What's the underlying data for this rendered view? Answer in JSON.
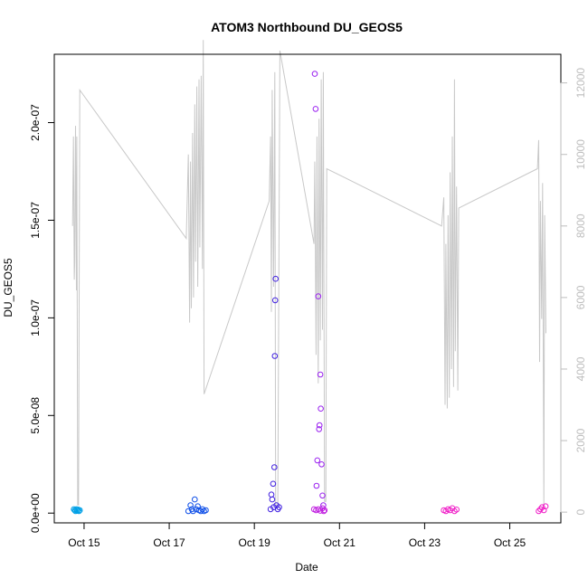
{
  "chart_data": {
    "type": "scatter",
    "title": "ATOM3 Northbound DU_GEOS5",
    "xlabel": "Date",
    "ylabel": "DU_GEOS5",
    "x_ticks": [
      "Oct 15",
      "Oct 17",
      "Oct 19",
      "Oct 21",
      "Oct 23",
      "Oct 25"
    ],
    "x_tick_days": [
      15,
      17,
      19,
      21,
      23,
      25
    ],
    "xlim": [
      14.3,
      26.2
    ],
    "ylim": [
      -5e-09,
      2.35e-07
    ],
    "y_ticks": [
      "0.0e+00",
      "5.0e-08",
      "1.0e-07",
      "1.5e-07",
      "2.0e-07"
    ],
    "y_tick_values": [
      0,
      5e-08,
      1e-07,
      1.5e-07,
      2e-07
    ],
    "y2_ylim": [
      -300,
      12800
    ],
    "y2_ticks": [
      "0",
      "2000",
      "4000",
      "6000",
      "8000",
      "10000",
      "12000"
    ],
    "y2_tick_values": [
      0,
      2000,
      4000,
      6000,
      8000,
      10000,
      12000
    ],
    "colors": {
      "altitude_line": "#c8c8c8",
      "flight1": "#00a0e6",
      "flight2": "#1050e8",
      "flight3": "#4020e0",
      "flight4": "#9a20f0",
      "flight5": "#c020e0",
      "flight6": "#f020c8"
    },
    "series": [
      {
        "color_key": "flight1",
        "x": [
          14.76,
          14.78,
          14.8,
          14.82,
          14.84,
          14.86,
          14.88,
          14.9
        ],
        "y": [
          2e-09,
          1.5e-09,
          1e-09,
          2e-09,
          1.2e-09,
          1.8e-09,
          1e-09,
          1.5e-09
        ]
      },
      {
        "color_key": "flight2",
        "x": [
          17.45,
          17.5,
          17.53,
          17.56,
          17.6,
          17.63,
          17.67,
          17.7,
          17.74,
          17.78,
          17.82,
          17.86
        ],
        "y": [
          1e-09,
          4e-09,
          2e-09,
          1e-09,
          7e-09,
          2e-09,
          3.5e-09,
          1.5e-09,
          1e-09,
          2e-09,
          1e-09,
          1.5e-09
        ]
      },
      {
        "color_key": "flight3",
        "x": [
          19.38,
          19.4,
          19.42,
          19.44,
          19.45,
          19.47,
          19.48,
          19.49,
          19.5,
          19.52,
          19.55,
          19.58
        ],
        "y": [
          2e-09,
          9.5e-09,
          7e-09,
          1.5e-08,
          3e-09,
          2.35e-08,
          8.05e-08,
          1.09e-07,
          1.2e-07,
          4e-09,
          2e-09,
          3e-09
        ]
      },
      {
        "color_key": "flight4",
        "x": [
          20.42,
          20.44,
          20.46,
          20.48,
          20.5,
          20.52,
          20.53,
          20.55,
          20.56,
          20.58,
          20.6,
          20.62
        ],
        "y": [
          2.25e-07,
          2.07e-07,
          1.4e-08,
          2.7e-08,
          1.11e-07,
          4.3e-08,
          4.5e-08,
          7.1e-08,
          5.35e-08,
          2.5e-08,
          9e-09,
          4e-09
        ]
      },
      {
        "color_key": "flight5",
        "x": [
          20.4,
          20.45,
          20.5,
          20.55,
          20.6,
          20.63,
          20.65
        ],
        "y": [
          2e-09,
          1.5e-09,
          2e-09,
          1.2e-09,
          2.5e-09,
          1e-09,
          1.5e-09
        ]
      },
      {
        "color_key": "flight6",
        "x": [
          23.45,
          23.5,
          23.55,
          23.6,
          23.65,
          23.7,
          23.75,
          25.68,
          25.72,
          25.76,
          25.8,
          25.84
        ],
        "y": [
          1.5e-09,
          1e-09,
          2e-09,
          1.5e-09,
          2.5e-09,
          1e-09,
          1.8e-09,
          1e-09,
          2e-09,
          3e-09,
          1.5e-09,
          3.5e-09
        ]
      }
    ],
    "altitude_series": {
      "axis": "right",
      "x": [
        14.73,
        14.75,
        14.77,
        14.78,
        14.8,
        14.82,
        14.83,
        14.85,
        14.87,
        14.9,
        17.4,
        17.45,
        17.48,
        17.5,
        17.52,
        17.55,
        17.57,
        17.6,
        17.62,
        17.65,
        17.67,
        17.7,
        17.72,
        17.75,
        17.78,
        17.8,
        17.82,
        19.35,
        19.38,
        19.4,
        19.42,
        19.45,
        19.48,
        19.5,
        19.55,
        19.6,
        20.4,
        20.42,
        20.45,
        20.47,
        20.5,
        20.52,
        20.55,
        20.57,
        20.6,
        20.62,
        20.65,
        20.68,
        20.7,
        23.4,
        23.45,
        23.48,
        23.5,
        23.53,
        23.55,
        23.58,
        23.6,
        23.63,
        23.65,
        23.68,
        23.7,
        23.72,
        23.75,
        23.78,
        23.8,
        25.65,
        25.68,
        25.7,
        25.72,
        25.75,
        25.77,
        25.8,
        25.82,
        25.85
      ],
      "y": [
        8000,
        10500,
        6500,
        7000,
        10800,
        6200,
        10500,
        200,
        200,
        11800,
        7650,
        10000,
        5300,
        9800,
        5700,
        10600,
        6000,
        11400,
        7000,
        11900,
        6300,
        12100,
        7400,
        12200,
        6800,
        13200,
        3300,
        8700,
        10500,
        5600,
        11800,
        6300,
        12300,
        200,
        200,
        12900,
        7500,
        9800,
        4400,
        10500,
        3600,
        11000,
        4800,
        12100,
        5100,
        12300,
        300,
        300,
        9600,
        8000,
        8800,
        3000,
        7500,
        2900,
        8300,
        3200,
        9500,
        4000,
        10500,
        3500,
        12100,
        4500,
        9100,
        3400,
        8500,
        9600,
        10400,
        4200,
        8700,
        5400,
        9200,
        200,
        8300,
        5000
      ]
    }
  }
}
